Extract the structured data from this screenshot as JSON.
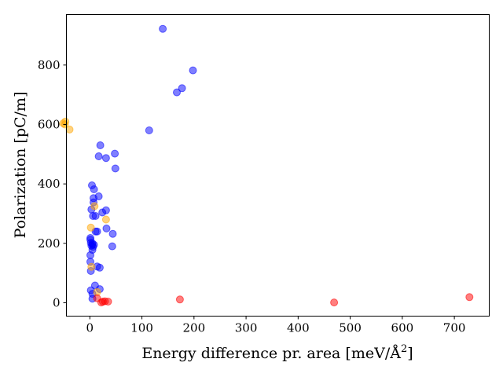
{
  "chart_data": {
    "type": "scatter",
    "xlabel": "Energy difference pr. area [meV/Å",
    "xlabel_sup": "2",
    "xlabel_end": "]",
    "ylabel": "Polarization [pC/m]",
    "xlim": [
      -45,
      767
    ],
    "ylim": [
      -45,
      970
    ],
    "xticks": [
      0,
      100,
      200,
      300,
      400,
      500,
      600,
      700
    ],
    "yticks": [
      0,
      200,
      400,
      600,
      800
    ],
    "grid": false,
    "series": [
      {
        "color": "#0000ff",
        "points": [
          [
            140,
            922
          ],
          [
            198,
            782
          ],
          [
            177,
            722
          ],
          [
            167,
            708
          ],
          [
            114,
            580
          ],
          [
            20,
            530
          ],
          [
            48,
            502
          ],
          [
            17,
            493
          ],
          [
            31,
            487
          ],
          [
            49,
            452
          ],
          [
            4,
            395
          ],
          [
            8,
            382
          ],
          [
            17,
            358
          ],
          [
            7,
            352
          ],
          [
            7,
            338
          ],
          [
            3,
            314
          ],
          [
            31,
            311
          ],
          [
            24,
            304
          ],
          [
            6,
            292
          ],
          [
            11,
            292
          ],
          [
            32,
            250
          ],
          [
            11,
            240
          ],
          [
            14,
            240
          ],
          [
            44,
            232
          ],
          [
            1,
            218
          ],
          [
            1,
            212
          ],
          [
            2,
            202
          ],
          [
            5,
            200
          ],
          [
            5,
            195
          ],
          [
            8,
            195
          ],
          [
            3,
            192
          ],
          [
            6,
            188
          ],
          [
            43,
            190
          ],
          [
            5,
            178
          ],
          [
            1,
            160
          ],
          [
            1,
            138
          ],
          [
            14,
            122
          ],
          [
            19,
            118
          ],
          [
            2,
            107
          ],
          [
            10,
            58
          ],
          [
            19,
            46
          ],
          [
            2,
            42
          ],
          [
            5,
            30
          ],
          [
            5,
            14
          ]
        ]
      },
      {
        "color": "#ffa500",
        "points": [
          [
            -47,
            610
          ],
          [
            -51,
            604
          ],
          [
            -48,
            600
          ],
          [
            -39,
            583
          ],
          [
            9,
            325
          ],
          [
            31,
            280
          ],
          [
            2,
            253
          ],
          [
            3,
            121
          ],
          [
            14,
            36
          ]
        ]
      },
      {
        "color": "#ff0000",
        "points": [
          [
            729,
            19
          ],
          [
            173,
            11
          ],
          [
            469,
            1
          ],
          [
            14,
            15
          ],
          [
            25,
            4
          ],
          [
            29,
            5
          ],
          [
            35,
            4
          ],
          [
            22,
            1
          ]
        ]
      }
    ]
  }
}
